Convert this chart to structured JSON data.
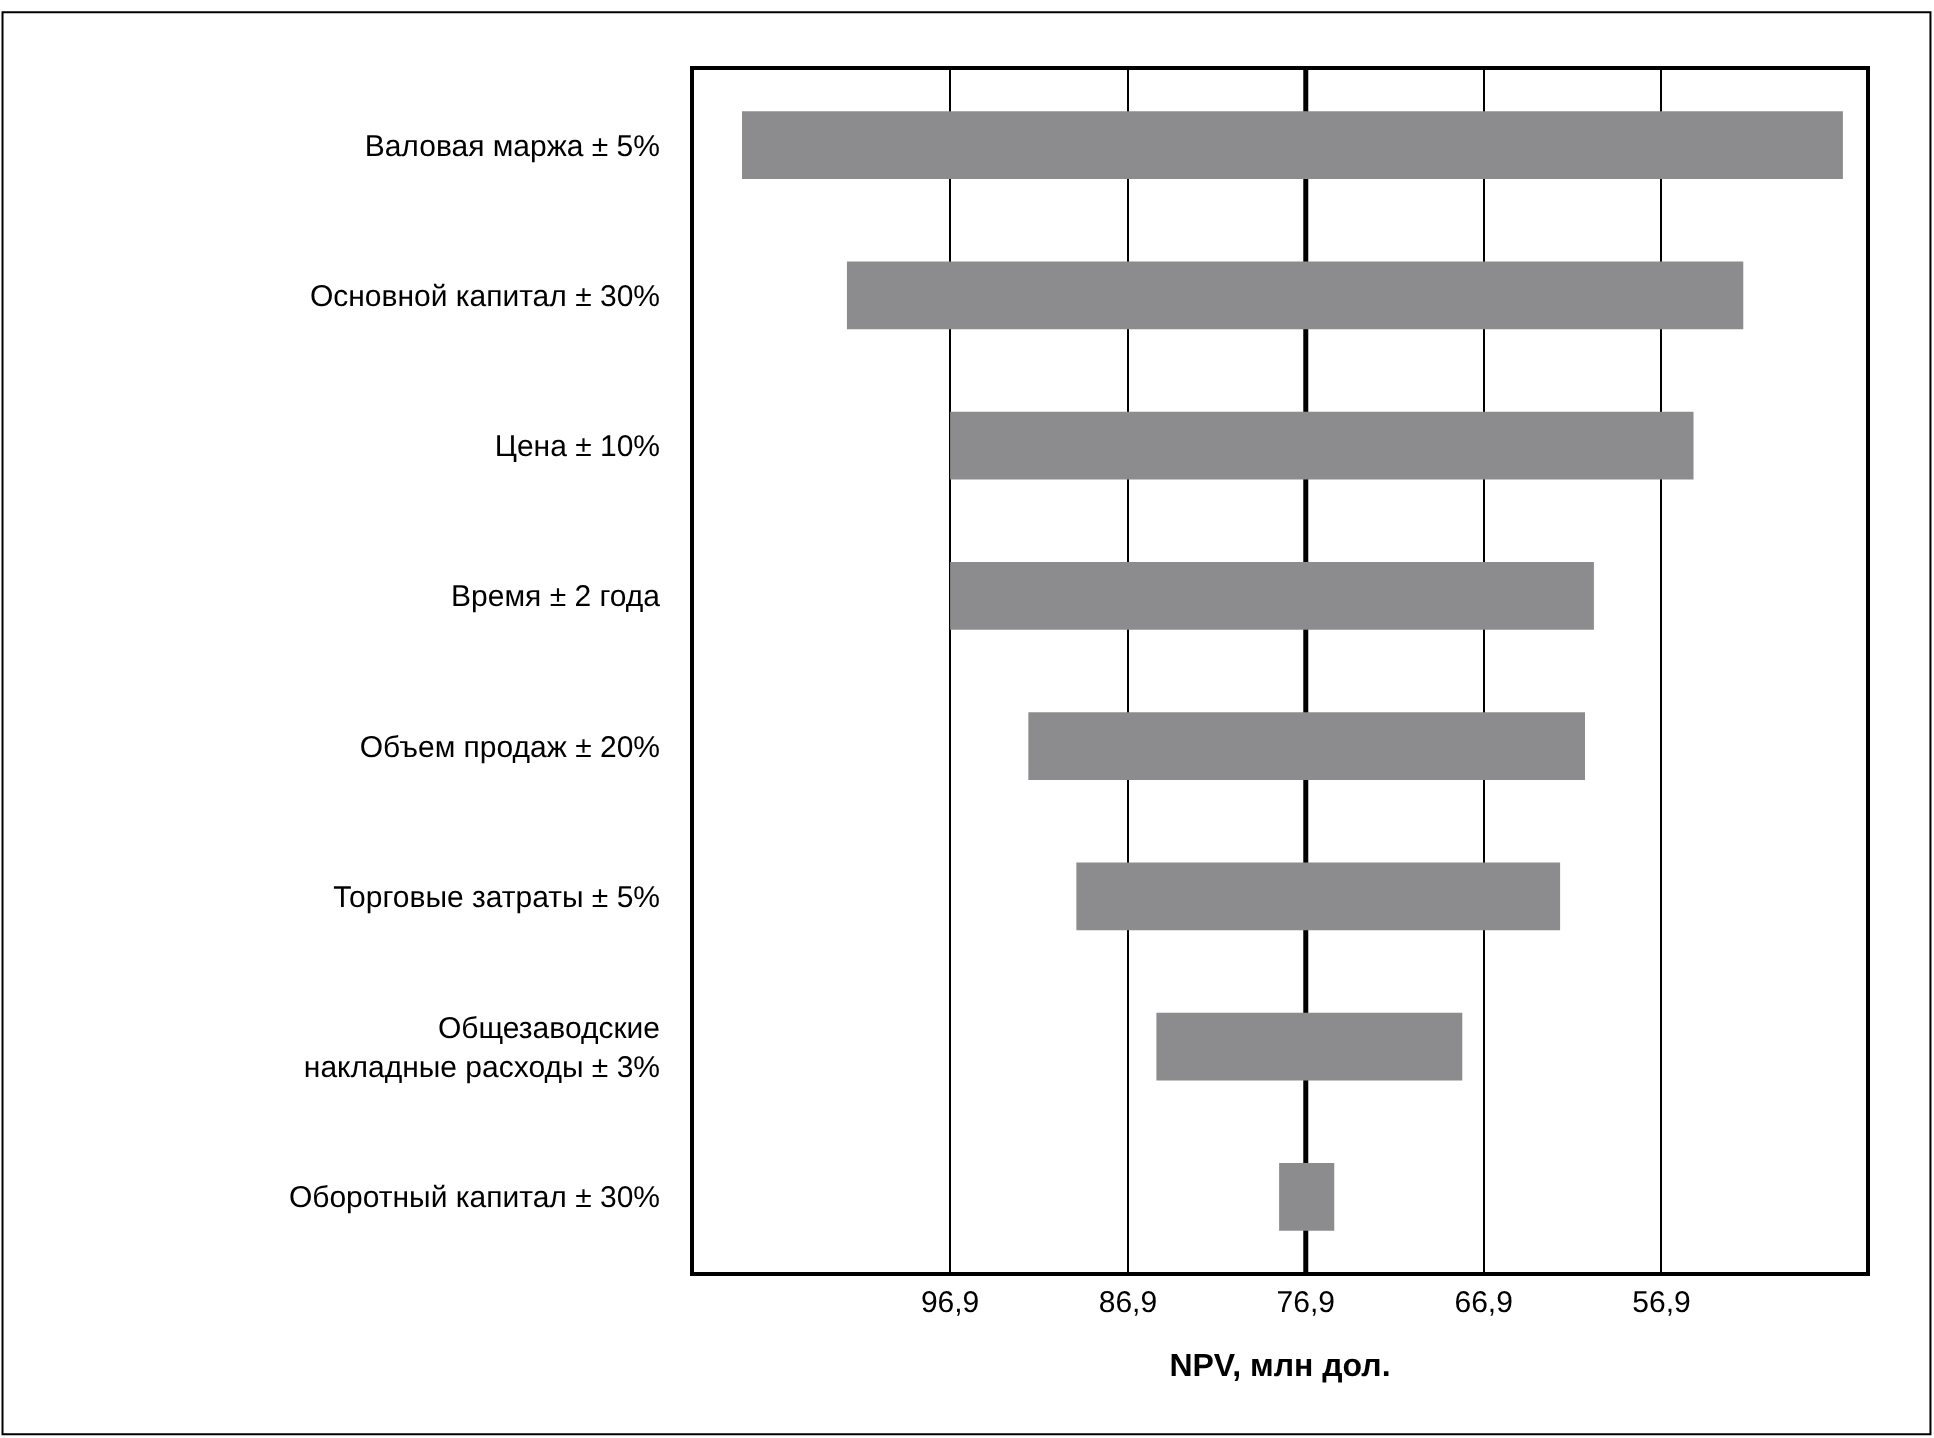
{
  "chart_data": {
    "type": "bar",
    "orientation": "horizontal",
    "xlabel": "NPV, млн дол.",
    "categories": [
      "Валовая маржа ± 5%",
      "Основной капитал ± 30%",
      "Цена ± 10%",
      "Время ± 2 года",
      "Объем продаж ± 20%",
      "Торговые затраты ± 5%",
      "Общезаводские накладные расходы ± 3%",
      "Оборотный капитал ± 30%"
    ],
    "base": [
      46.7,
      52.3,
      55.1,
      60.7,
      61.2,
      62.6,
      68.1,
      75.3
    ],
    "values": [
      61.9,
      50.4,
      41.8,
      36.2,
      31.3,
      27.2,
      17.2,
      3.1
    ],
    "color": "#8c8c8e",
    "xlim": [
      111.3,
      45.4
    ],
    "xticks": [
      {
        "value": 96.9,
        "label": "96,9"
      },
      {
        "value": 86.9,
        "label": "86,9"
      },
      {
        "value": 76.9,
        "label": "76,9"
      },
      {
        "value": 66.9,
        "label": "66,9"
      },
      {
        "value": 56.9,
        "label": "56,9"
      }
    ],
    "grid": "x",
    "ref_lines": [
      {
        "axis": "x",
        "value": 76.9,
        "color": "#000000"
      }
    ]
  }
}
